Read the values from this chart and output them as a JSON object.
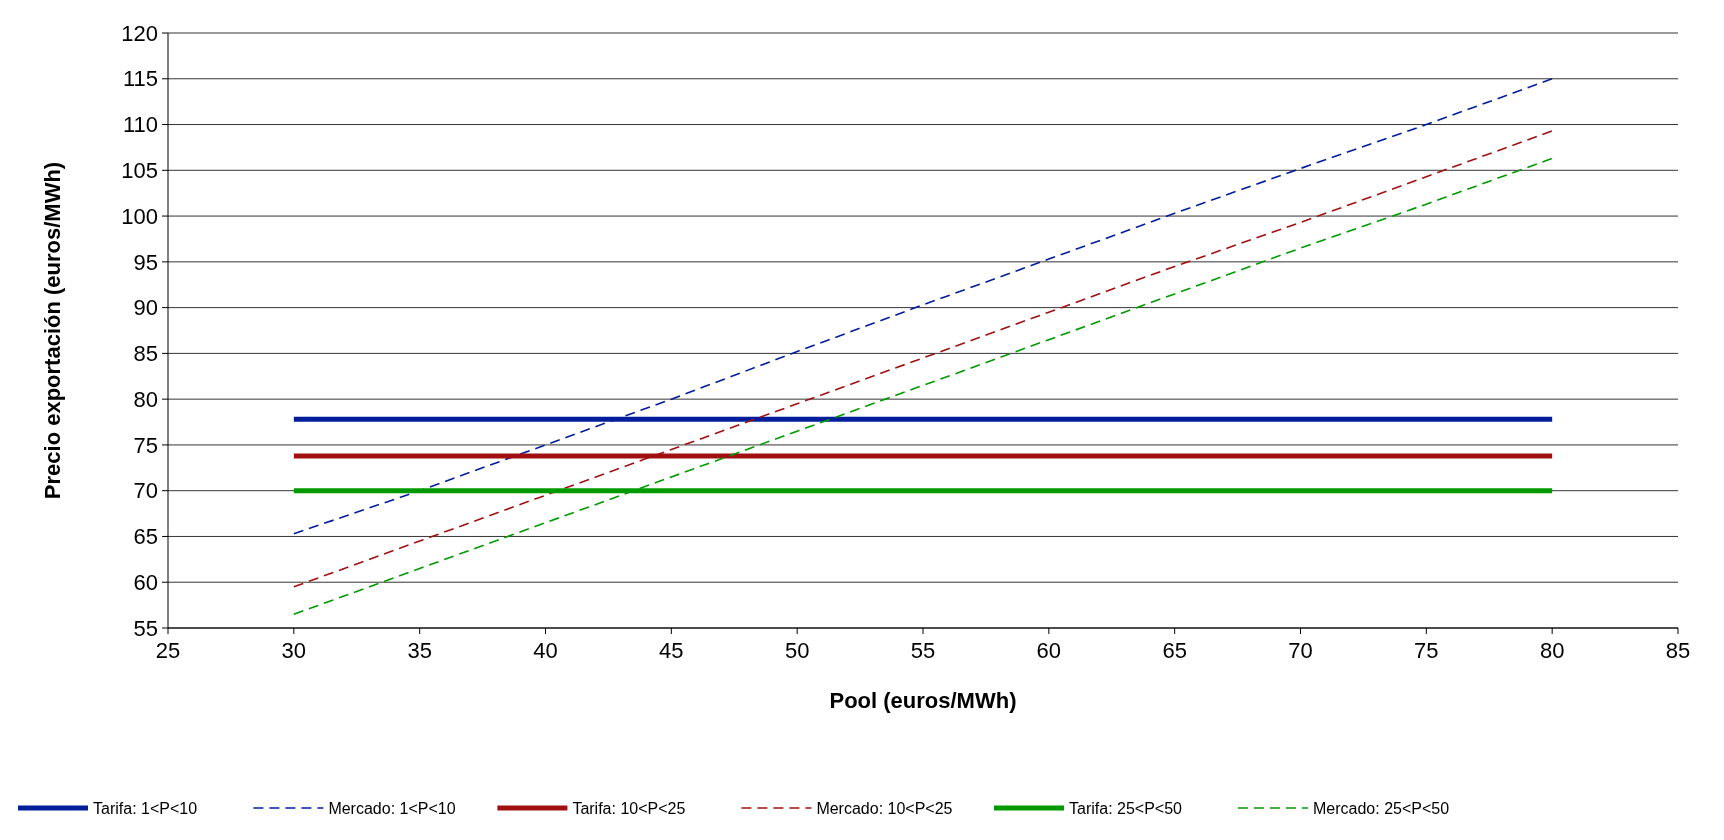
{
  "chart_data": {
    "type": "line",
    "xlabel": "Pool (euros/MWh)",
    "ylabel": "Precio exportación (euros/MWh)",
    "xlim": [
      25,
      85
    ],
    "xticks": [
      25,
      30,
      35,
      40,
      45,
      50,
      55,
      60,
      65,
      70,
      75,
      80,
      85
    ],
    "ylim": [
      55,
      120
    ],
    "yticks": [
      55,
      60,
      65,
      70,
      75,
      80,
      85,
      90,
      95,
      100,
      105,
      110,
      115,
      120
    ],
    "grid": "y",
    "legend": "bottom",
    "marker": "none",
    "x": [
      30,
      35,
      40,
      45,
      50,
      55,
      60,
      65,
      70,
      75,
      80
    ],
    "series": [
      {
        "name": "Tarifa: 1<P<10",
        "color": "#001e9c",
        "line_style": "solid",
        "values": [
          77.8,
          77.8,
          77.8,
          77.8,
          77.8,
          77.8,
          77.8,
          77.8,
          77.8,
          77.8,
          77.8
        ]
      },
      {
        "name": "Mercado: 1<P<10",
        "color": "#001e9c",
        "line_style": "dashed",
        "values": [
          65.3,
          70,
          75,
          80,
          85.2,
          90.3,
          95.3,
          100.3,
          105.2,
          110,
          115
        ]
      },
      {
        "name": "Tarifa: 10<P<25",
        "color": "#a01010",
        "line_style": "solid",
        "values": [
          73.8,
          73.8,
          73.8,
          73.8,
          73.8,
          73.8,
          73.8,
          73.8,
          73.8,
          73.8,
          73.8
        ]
      },
      {
        "name": "Mercado: 10<P<25",
        "color": "#a01010",
        "line_style": "dashed",
        "values": [
          59.5,
          64.5,
          69.5,
          74.5,
          79.5,
          84.5,
          89.5,
          94.5,
          99.3,
          104.3,
          109.3
        ]
      },
      {
        "name": "Tarifa: 25<P<50",
        "color": "#009a00",
        "line_style": "solid",
        "values": [
          70,
          70,
          70,
          70,
          70,
          70,
          70,
          70,
          70,
          70,
          70
        ]
      },
      {
        "name": "Mercado: 25<P<50",
        "color": "#009a00",
        "line_style": "dashed",
        "values": [
          56.5,
          61.5,
          66.5,
          71.5,
          76.5,
          81.5,
          86.5,
          91.5,
          96.5,
          101.3,
          106.3
        ]
      }
    ]
  }
}
